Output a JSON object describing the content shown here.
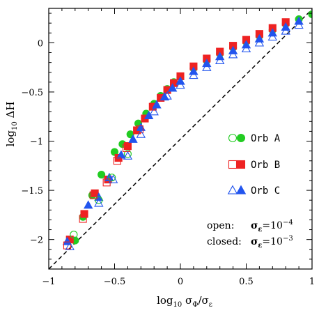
{
  "chart_data": {
    "type": "scatter",
    "title": "",
    "xlabel": "log₁₀ σ_Φ/σ_ε",
    "ylabel": "log₁₀ ΔH",
    "xlim": [
      -1,
      1
    ],
    "ylim": [
      -2.3,
      0.35
    ],
    "x_ticks": [
      -1,
      -0.5,
      0,
      0.5,
      1
    ],
    "x_tick_labels": [
      "−1",
      "−0.5",
      "0",
      "0.5",
      "1"
    ],
    "y_ticks": [
      -2,
      -1.5,
      -1,
      -0.5,
      0
    ],
    "y_tick_labels": [
      "−2",
      "−1.5",
      "−1",
      "−0.5",
      "0"
    ],
    "grid": false,
    "legend_position": "right",
    "reference_line": {
      "style": "dashed",
      "color": "#000000",
      "slope": 1.32,
      "intercept": -0.98
    },
    "legend": {
      "entries": [
        {
          "name": "Orb A",
          "color": "#22cc22",
          "marker": "circle"
        },
        {
          "name": "Orb B",
          "color": "#ee2222",
          "marker": "square"
        },
        {
          "name": "Orb C",
          "color": "#2255ee",
          "marker": "triangle"
        }
      ],
      "note_line1_label": "open:",
      "note_line1_value": "σ_ε=10^-4",
      "note_line2_label": "closed:",
      "note_line2_value": "σ_ε=10^-3"
    },
    "series": [
      {
        "name": "Orb A",
        "color": "#22cc22",
        "marker": "circle",
        "open": [
          [
            -0.81,
            -1.95
          ],
          [
            -0.62,
            -1.6
          ],
          [
            -0.52,
            -1.37
          ],
          [
            -0.4,
            -1.13
          ]
        ],
        "closed": [
          [
            -0.8,
            -2.01
          ],
          [
            -0.74,
            -1.77
          ],
          [
            -0.67,
            -1.55
          ],
          [
            -0.6,
            -1.34
          ],
          [
            -0.5,
            -1.11
          ],
          [
            -0.44,
            -1.03
          ],
          [
            -0.38,
            -0.93
          ],
          [
            -0.32,
            -0.82
          ],
          [
            -0.26,
            -0.72
          ],
          [
            -0.2,
            -0.62
          ],
          [
            -0.15,
            -0.54
          ],
          [
            -0.1,
            -0.47
          ],
          [
            -0.05,
            -0.4
          ],
          [
            0.0,
            -0.35
          ],
          [
            0.1,
            -0.26
          ],
          [
            0.2,
            -0.18
          ],
          [
            0.3,
            -0.11
          ],
          [
            0.4,
            -0.05
          ],
          [
            0.5,
            0.01
          ],
          [
            0.6,
            0.07
          ],
          [
            0.7,
            0.13
          ],
          [
            0.8,
            0.19
          ],
          [
            0.9,
            0.24
          ],
          [
            1.0,
            0.29
          ]
        ]
      },
      {
        "name": "Orb B",
        "color": "#ee2222",
        "marker": "square",
        "open": [
          [
            -0.86,
            -2.06
          ],
          [
            -0.74,
            -1.79
          ],
          [
            -0.66,
            -1.55
          ],
          [
            -0.56,
            -1.42
          ],
          [
            -0.48,
            -1.2
          ],
          [
            -0.41,
            -1.07
          ],
          [
            -0.31,
            -0.88
          ]
        ],
        "closed": [
          [
            -0.84,
            -2.0
          ],
          [
            -0.73,
            -1.74
          ],
          [
            -0.65,
            -1.53
          ],
          [
            -0.55,
            -1.39
          ],
          [
            -0.47,
            -1.17
          ],
          [
            -0.4,
            -1.05
          ],
          [
            -0.33,
            -0.89
          ],
          [
            -0.27,
            -0.77
          ],
          [
            -0.21,
            -0.65
          ],
          [
            -0.15,
            -0.56
          ],
          [
            -0.1,
            -0.48
          ],
          [
            -0.05,
            -0.41
          ],
          [
            0.0,
            -0.34
          ],
          [
            0.1,
            -0.24
          ],
          [
            0.2,
            -0.16
          ],
          [
            0.3,
            -0.09
          ],
          [
            0.4,
            -0.03
          ],
          [
            0.5,
            0.03
          ],
          [
            0.6,
            0.09
          ],
          [
            0.7,
            0.15
          ],
          [
            0.8,
            0.21
          ]
        ]
      },
      {
        "name": "Orb C",
        "color": "#2255ee",
        "marker": "triangle",
        "open": [
          [
            -0.84,
            -2.07
          ],
          [
            -0.62,
            -1.63
          ],
          [
            -0.51,
            -1.39
          ],
          [
            -0.4,
            -1.15
          ],
          [
            -0.3,
            -0.93
          ],
          [
            -0.2,
            -0.7
          ],
          [
            -0.1,
            -0.54
          ],
          [
            0.0,
            -0.43
          ],
          [
            0.1,
            -0.33
          ],
          [
            0.2,
            -0.25
          ],
          [
            0.3,
            -0.18
          ],
          [
            0.4,
            -0.12
          ],
          [
            0.5,
            -0.06
          ],
          [
            0.6,
            0.0
          ],
          [
            0.7,
            0.06
          ],
          [
            0.8,
            0.12
          ],
          [
            0.9,
            0.18
          ]
        ],
        "closed": [
          [
            -0.86,
            -2.02
          ],
          [
            -0.7,
            -1.65
          ],
          [
            -0.62,
            -1.57
          ],
          [
            -0.54,
            -1.37
          ],
          [
            -0.45,
            -1.14
          ],
          [
            -0.36,
            -0.98
          ],
          [
            -0.3,
            -0.86
          ],
          [
            -0.24,
            -0.74
          ],
          [
            -0.18,
            -0.63
          ],
          [
            -0.12,
            -0.55
          ],
          [
            -0.06,
            -0.46
          ],
          [
            0.0,
            -0.39
          ],
          [
            0.1,
            -0.29
          ],
          [
            0.2,
            -0.21
          ],
          [
            0.3,
            -0.14
          ],
          [
            0.4,
            -0.08
          ],
          [
            0.5,
            -0.02
          ],
          [
            0.6,
            0.04
          ],
          [
            0.7,
            0.1
          ],
          [
            0.8,
            0.16
          ],
          [
            0.9,
            0.22
          ]
        ]
      }
    ]
  }
}
